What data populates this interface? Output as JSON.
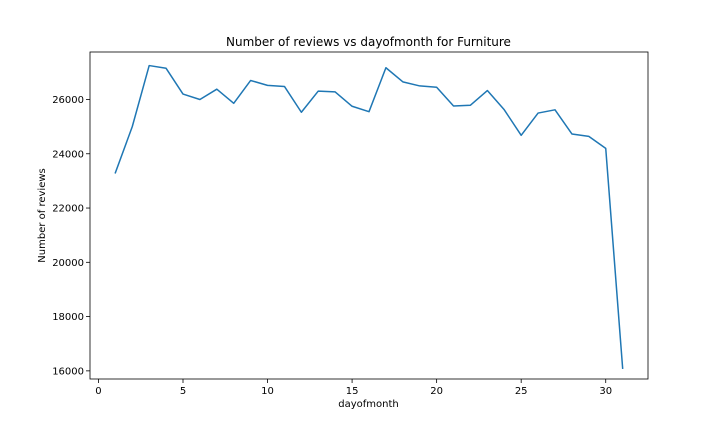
{
  "chart_data": {
    "type": "line",
    "title": "Number of reviews vs dayofmonth for Furniture",
    "xlabel": "dayofmonth",
    "ylabel": "Number of reviews",
    "xlim": [
      -0.5,
      32.5
    ],
    "ylim": [
      15700,
      27750
    ],
    "xticks": [
      0,
      5,
      10,
      15,
      20,
      25,
      30
    ],
    "yticks": [
      16000,
      18000,
      20000,
      22000,
      24000,
      26000
    ],
    "grid": false,
    "line_color": "#1f77b4",
    "series": [
      {
        "x": [
          1,
          2,
          3,
          4,
          5,
          6,
          7,
          8,
          9,
          10,
          11,
          12,
          13,
          14,
          15,
          16,
          17,
          18,
          19,
          20,
          21,
          22,
          23,
          24,
          25,
          26,
          27,
          28,
          29,
          30,
          31
        ],
        "values": [
          23300,
          25000,
          27250,
          27150,
          26200,
          26000,
          26380,
          25860,
          26700,
          26520,
          26480,
          25530,
          26310,
          26280,
          25750,
          25550,
          27170,
          26650,
          26500,
          26450,
          25760,
          25790,
          26330,
          25620,
          24680,
          25500,
          25620,
          24730,
          24640,
          24200,
          16100
        ]
      }
    ]
  }
}
